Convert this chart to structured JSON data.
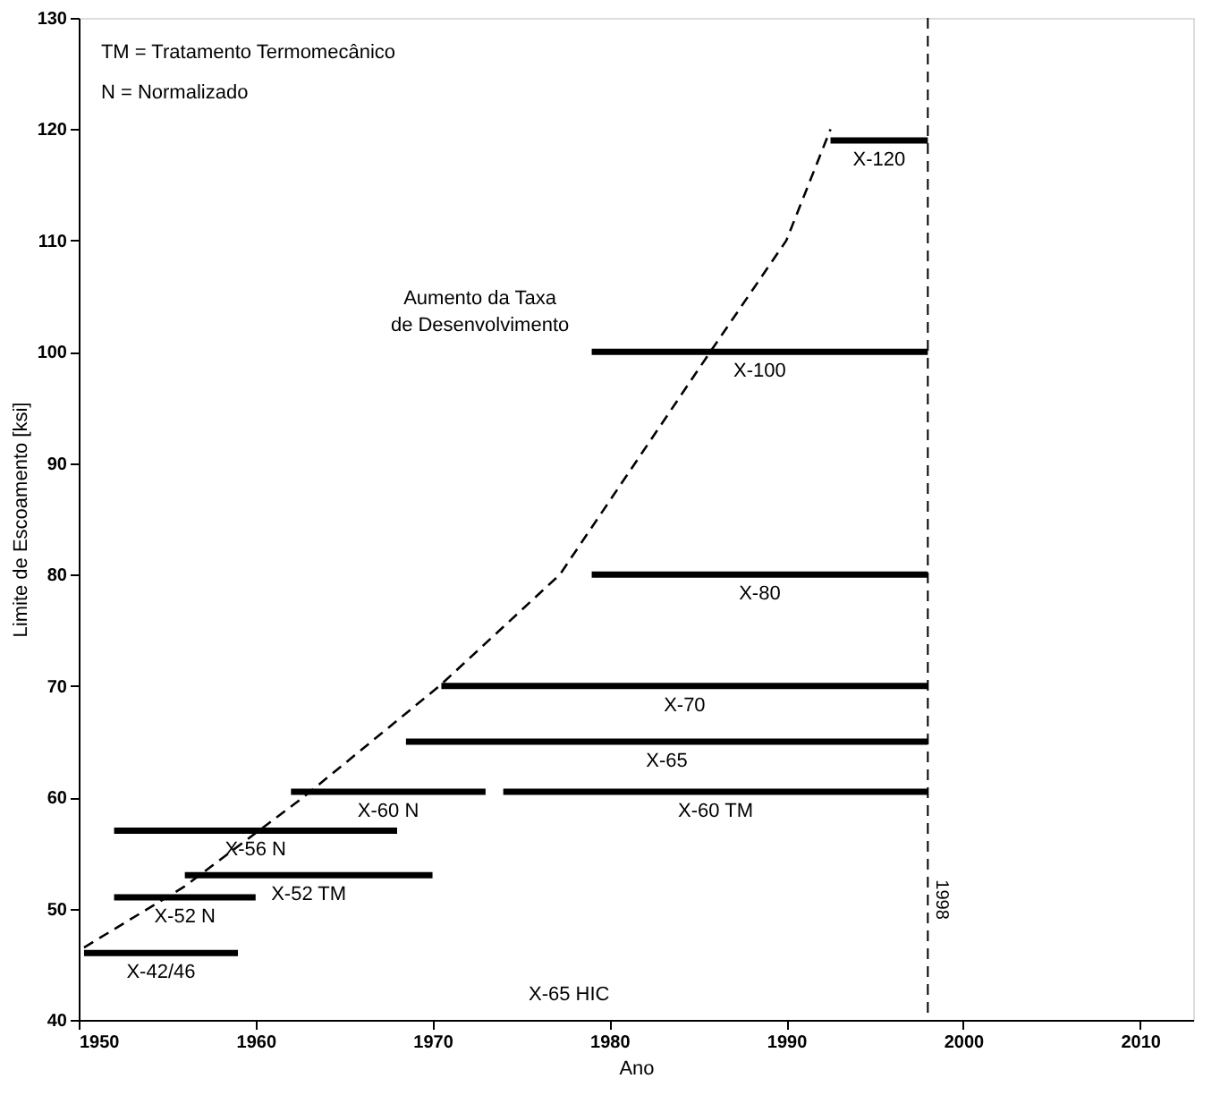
{
  "chart_data": {
    "type": "line",
    "xlabel": "Ano",
    "ylabel": "Limite de Escoamento [ksi]",
    "xlim": [
      1950,
      2013
    ],
    "xticks": [
      1950,
      1960,
      1970,
      1980,
      1990,
      2000,
      2010
    ],
    "ylim": [
      40,
      130
    ],
    "yticks": [
      40,
      50,
      60,
      70,
      80,
      90,
      100,
      110,
      120,
      130
    ],
    "grid": false,
    "line_style": "solid",
    "series": [
      {
        "name": "X-42/46",
        "color": "#000000",
        "x": [
          1950.3,
          1959
        ],
        "values": [
          46,
          46
        ]
      },
      {
        "name": "X-52 N",
        "color": "#000000",
        "x": [
          1952,
          1960
        ],
        "values": [
          51,
          51
        ]
      },
      {
        "name": "X-52 TM",
        "color": "#000000",
        "x": [
          1956,
          1970
        ],
        "values": [
          53,
          53
        ]
      },
      {
        "name": "X-56 N",
        "color": "#000000",
        "x": [
          1952,
          1968
        ],
        "values": [
          57,
          57
        ]
      },
      {
        "name": "X-60 N",
        "color": "#000000",
        "x": [
          1962,
          1973
        ],
        "values": [
          60.5,
          60.5
        ]
      },
      {
        "name": "X-60 TM",
        "color": "#000000",
        "x": [
          1974,
          1998
        ],
        "values": [
          60.5,
          60.5
        ]
      },
      {
        "name": "X-65",
        "color": "#000000",
        "x": [
          1968.5,
          1998
        ],
        "values": [
          65,
          65
        ]
      },
      {
        "name": "X-70",
        "color": "#000000",
        "x": [
          1970.5,
          1998
        ],
        "values": [
          70,
          70
        ]
      },
      {
        "name": "X-80",
        "color": "#000000",
        "x": [
          1979,
          1998
        ],
        "values": [
          80,
          80
        ]
      },
      {
        "name": "X-100",
        "color": "#000000",
        "x": [
          1979,
          1998
        ],
        "values": [
          100,
          100
        ]
      },
      {
        "name": "X-120",
        "color": "#000000",
        "x": [
          1992.5,
          1998
        ],
        "values": [
          119,
          119
        ]
      },
      {
        "color": "#000000",
        "line_style": "dashed",
        "x": [
          1950.3,
          1956,
          1962.7,
          1970.4,
          1977.2,
          1985.7,
          1990,
          1992.5
        ],
        "values": [
          46.5,
          52,
          60,
          70,
          80,
          100,
          110,
          120
        ]
      }
    ],
    "ref_lines": [
      {
        "axis": "x",
        "value": 1998,
        "label": "1998",
        "line_style": "dashed",
        "color": "#000000"
      }
    ],
    "annotations": [
      "TM = Tratamento Termomecânico",
      "N = Normalizado",
      "Aumento da Taxa\nde Desenvolvimento",
      "X-65 HIC"
    ]
  }
}
